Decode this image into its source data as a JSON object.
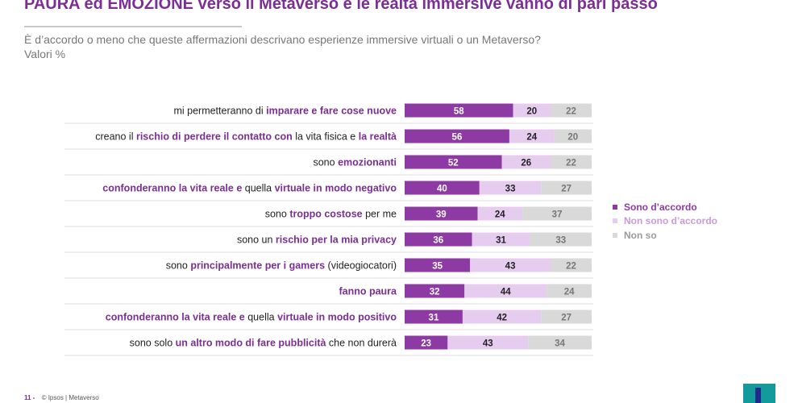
{
  "title": "PAURA ed EMOZIONE verso il Metaverso e le realtà immersive vanno di pari passo",
  "subtitle": "È d’accordo o meno che queste affermazioni descrivano esperienze immersive virtuali o un Metaverso?",
  "subtitle2": "Valori %",
  "colors": {
    "accent": "#7b2e94",
    "agree": "#8e3aa4",
    "disagree": "#e6cdf0",
    "dontknow": "#d9d9d9"
  },
  "chart_data": {
    "type": "bar",
    "orientation": "horizontal",
    "stacked": true,
    "categories": [
      "mi permetteranno di imparare e fare cose nuove",
      "creano il rischio di perdere il contatto con la vita fisica e la realtà",
      "sono emozionanti",
      "confonderanno la vita reale e quella virtuale in modo negativo",
      "sono troppo costose per me",
      "sono un rischio per la mia privacy",
      "sono principalmente per i gamers (videogiocatori)",
      "fanno paura",
      "confonderanno la vita reale e quella virtuale in modo positivo",
      "sono solo un altro modo di fare pubblicità che non durerà"
    ],
    "label_parts": [
      [
        [
          "mi permetteranno di ",
          false
        ],
        [
          "imparare e fare cose nuove",
          true
        ]
      ],
      [
        [
          "creano il ",
          false
        ],
        [
          "rischio di perdere il contatto con",
          true
        ],
        [
          " la vita fisica e ",
          false
        ],
        [
          "la realtà",
          true
        ]
      ],
      [
        [
          "sono ",
          false
        ],
        [
          "emozionanti",
          true
        ]
      ],
      [
        [
          "confonderanno la vita reale e",
          true
        ],
        [
          " quella ",
          false
        ],
        [
          "virtuale in modo negativo",
          true
        ]
      ],
      [
        [
          "sono ",
          false
        ],
        [
          "troppo costose",
          true
        ],
        [
          " per me",
          false
        ]
      ],
      [
        [
          "sono un ",
          false
        ],
        [
          "rischio per la mia privacy",
          true
        ]
      ],
      [
        [
          "sono ",
          false
        ],
        [
          "principalmente per i gamers",
          true
        ],
        [
          " (videogiocatori)",
          false
        ]
      ],
      [
        [
          "fanno paura",
          true
        ]
      ],
      [
        [
          "confonderanno la vita reale e",
          true
        ],
        [
          " quella ",
          false
        ],
        [
          "virtuale in modo positivo",
          true
        ]
      ],
      [
        [
          "sono solo ",
          false
        ],
        [
          "un altro modo di fare pubblicità",
          true
        ],
        [
          " che non durerà",
          false
        ]
      ]
    ],
    "series": [
      {
        "name": "Sono d’accordo",
        "values": [
          58,
          56,
          52,
          40,
          39,
          36,
          35,
          32,
          31,
          23
        ]
      },
      {
        "name": "Non sono d’accordo",
        "values": [
          20,
          24,
          26,
          33,
          24,
          31,
          43,
          44,
          42,
          43
        ]
      },
      {
        "name": "Non so",
        "values": [
          22,
          20,
          22,
          27,
          37,
          33,
          22,
          24,
          27,
          34
        ]
      }
    ],
    "xlim": [
      0,
      100
    ],
    "legend_position": "right",
    "grid": false
  },
  "footer": {
    "page": "11 -",
    "text": "© Ipsos | Metaverso"
  }
}
